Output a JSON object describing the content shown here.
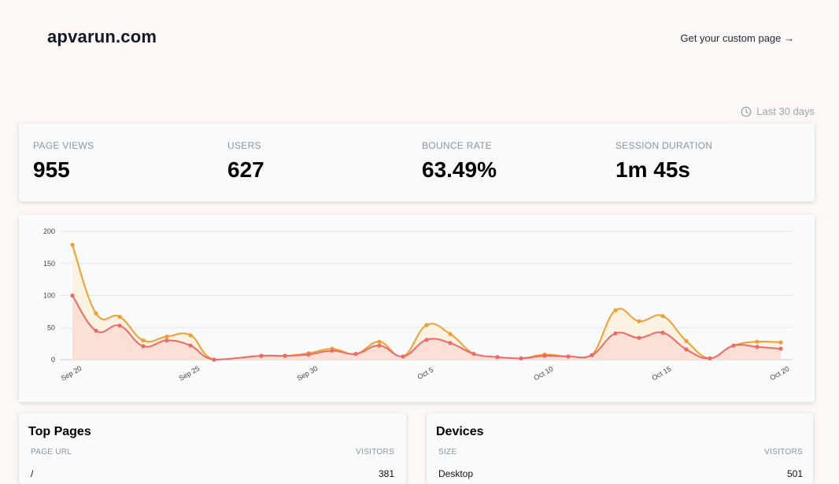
{
  "header": {
    "site_name": "apvarun.com",
    "custom_link": "Get your custom page →"
  },
  "range": {
    "label": "Last 30 days",
    "icon": "clock-icon"
  },
  "stats": [
    {
      "label": "PAGE VIEWS",
      "value": "955"
    },
    {
      "label": "USERS",
      "value": "627"
    },
    {
      "label": "BOUNCE RATE",
      "value": "63.49%"
    },
    {
      "label": "SESSION DURATION",
      "value": "1m 45s"
    }
  ],
  "chart_data": {
    "type": "area",
    "x": [
      "Sep 20",
      "Sep 21",
      "Sep 22",
      "Sep 23",
      "Sep 24",
      "Sep 25",
      "Sep 26",
      "Sep 27",
      "Sep 28",
      "Sep 29",
      "Sep 30",
      "Oct 1",
      "Oct 2",
      "Oct 3",
      "Oct 4",
      "Oct 5",
      "Oct 6",
      "Oct 7",
      "Oct 8",
      "Oct 9",
      "Oct 10",
      "Oct 11",
      "Oct 12",
      "Oct 13",
      "Oct 14",
      "Oct 15",
      "Oct 16",
      "Oct 17",
      "Oct 18",
      "Oct 19",
      "Oct 20"
    ],
    "x_tick_labels": [
      "Sep 20",
      "Sep 25",
      "Sep 30",
      "Oct 5",
      "Oct 10",
      "Oct 15",
      "Oct 20"
    ],
    "ylim": [
      0,
      200
    ],
    "y_ticks": [
      0,
      50,
      100,
      150,
      200
    ],
    "grid": true,
    "series": [
      {
        "color": "#f0a033",
        "fill": "#fbf0dc",
        "values": [
          179,
          72,
          67,
          30,
          36,
          38,
          0,
          null,
          6,
          6,
          10,
          17,
          9,
          28,
          5,
          54,
          40,
          9,
          4,
          2,
          8,
          5,
          7,
          77,
          60,
          68,
          29,
          2,
          22,
          28,
          27
        ]
      },
      {
        "color": "#ee6a6a",
        "fill": "#fbdcd2",
        "values": [
          100,
          45,
          53,
          21,
          30,
          22,
          0,
          null,
          6,
          6,
          8,
          14,
          9,
          22,
          5,
          31,
          26,
          9,
          4,
          2,
          6,
          5,
          7,
          41,
          34,
          42,
          16,
          2,
          22,
          20,
          17
        ]
      }
    ]
  },
  "top_pages": {
    "title": "Top Pages",
    "col_left": "PAGE URL",
    "col_right": "VISITORS",
    "rows": [
      {
        "label": "/",
        "value": "381"
      }
    ]
  },
  "devices": {
    "title": "Devices",
    "col_left": "SIZE",
    "col_right": "VISITORS",
    "rows": [
      {
        "label": "Desktop",
        "value": "501"
      }
    ]
  }
}
